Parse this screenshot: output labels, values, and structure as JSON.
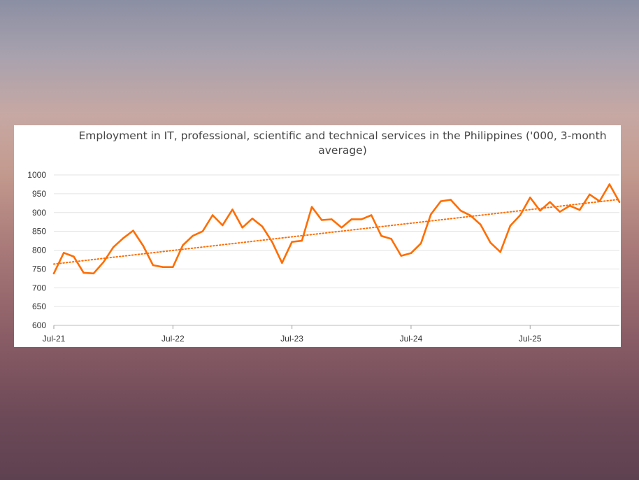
{
  "chart_data": {
    "type": "line",
    "title": "Employment in IT, professional, scientific and technical services in the Philippines ('000, 3-month average)",
    "xlabel": "",
    "ylabel": "",
    "ylim": [
      600,
      1000
    ],
    "yticks": [
      "1000",
      "950",
      "900",
      "850",
      "800",
      "750",
      "700",
      "650",
      "600"
    ],
    "xtick_labels": [
      "Jul-21",
      "Jul-22",
      "Jul-23",
      "Jul-24",
      "Jul-25"
    ],
    "grid": true,
    "legend": "none",
    "series": [
      {
        "style": "solid",
        "color": "#ff6d00",
        "values": [
          738,
          793,
          783,
          740,
          738,
          768,
          808,
          832,
          852,
          812,
          760,
          755,
          755,
          813,
          838,
          850,
          893,
          866,
          908,
          860,
          884,
          863,
          822,
          766,
          822,
          825,
          915,
          880,
          882,
          860,
          882,
          882,
          893,
          838,
          830,
          785,
          792,
          818,
          895,
          930,
          934,
          905,
          892,
          868,
          820,
          795,
          865,
          893,
          940,
          905,
          928,
          902,
          918,
          907,
          948,
          930,
          975,
          928
        ]
      },
      {
        "style": "dotted",
        "color": "#ff6d00",
        "values": [
          763,
          935
        ]
      }
    ]
  }
}
